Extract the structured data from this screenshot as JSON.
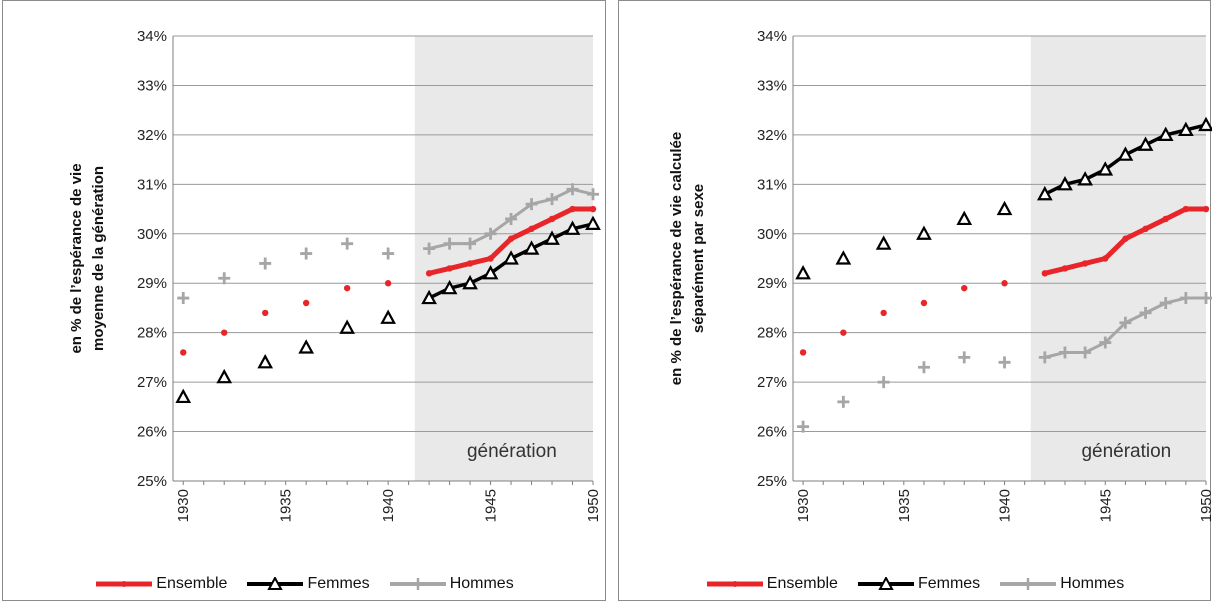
{
  "chart_data": [
    {
      "type": "line",
      "ylabel": [
        "en % de l’espérance de vie",
        "moyenne de la génération"
      ],
      "ylim": [
        25,
        34
      ],
      "yticks": [
        "25%",
        "26%",
        "27%",
        "28%",
        "29%",
        "30%",
        "31%",
        "32%",
        "33%",
        "34%"
      ],
      "xlim": [
        1929.5,
        1950
      ],
      "xticks": [
        "1930",
        "1935",
        "1940",
        "1945",
        "1950"
      ],
      "grid": true,
      "legend_position": "bottom",
      "shaded_region": {
        "x_start": 1941.3,
        "x_end": 1950,
        "label": "génération"
      },
      "series": [
        {
          "name": "Ensemble",
          "color": "#e8262a",
          "marker": "dot",
          "line_from": 1942,
          "x": [
            1930,
            1932,
            1934,
            1936,
            1938,
            1940,
            1942,
            1943,
            1944,
            1945,
            1946,
            1947,
            1948,
            1949,
            1950
          ],
          "y": [
            27.6,
            28.0,
            28.4,
            28.6,
            28.9,
            29.0,
            29.2,
            29.3,
            29.4,
            29.5,
            29.9,
            30.1,
            30.3,
            30.5,
            30.5
          ]
        },
        {
          "name": "Femmes",
          "color": "#000000",
          "marker": "triangle",
          "line_from": 1942,
          "x": [
            1930,
            1932,
            1934,
            1936,
            1938,
            1940,
            1942,
            1943,
            1944,
            1945,
            1946,
            1947,
            1948,
            1949,
            1950
          ],
          "y": [
            26.7,
            27.1,
            27.4,
            27.7,
            28.1,
            28.3,
            28.7,
            28.9,
            29.0,
            29.2,
            29.5,
            29.7,
            29.9,
            30.1,
            30.2
          ]
        },
        {
          "name": "Hommes",
          "color": "#a6a6a6",
          "marker": "plus",
          "line_from": 1942,
          "x": [
            1930,
            1932,
            1934,
            1936,
            1938,
            1940,
            1942,
            1943,
            1944,
            1945,
            1946,
            1947,
            1948,
            1949,
            1950
          ],
          "y": [
            28.7,
            29.1,
            29.4,
            29.6,
            29.8,
            29.6,
            29.7,
            29.8,
            29.8,
            30.0,
            30.3,
            30.6,
            30.7,
            30.9,
            30.8
          ]
        }
      ]
    },
    {
      "type": "line",
      "ylabel": [
        "en % de l’espérance de vie calculée",
        "séparément par sexe"
      ],
      "ylim": [
        25,
        34
      ],
      "yticks": [
        "25%",
        "26%",
        "27%",
        "28%",
        "29%",
        "30%",
        "31%",
        "32%",
        "33%",
        "34%"
      ],
      "xlim": [
        1929.5,
        1950
      ],
      "xticks": [
        "1930",
        "1935",
        "1940",
        "1945",
        "1950"
      ],
      "grid": true,
      "legend_position": "bottom",
      "shaded_region": {
        "x_start": 1941.3,
        "x_end": 1950,
        "label": "génération"
      },
      "series": [
        {
          "name": "Ensemble",
          "color": "#e8262a",
          "marker": "dot",
          "line_from": 1942,
          "x": [
            1930,
            1932,
            1934,
            1936,
            1938,
            1940,
            1942,
            1943,
            1944,
            1945,
            1946,
            1947,
            1948,
            1949,
            1950
          ],
          "y": [
            27.6,
            28.0,
            28.4,
            28.6,
            28.9,
            29.0,
            29.2,
            29.3,
            29.4,
            29.5,
            29.9,
            30.1,
            30.3,
            30.5,
            30.5
          ]
        },
        {
          "name": "Femmes",
          "color": "#000000",
          "marker": "triangle",
          "line_from": 1942,
          "x": [
            1930,
            1932,
            1934,
            1936,
            1938,
            1940,
            1942,
            1943,
            1944,
            1945,
            1946,
            1947,
            1948,
            1949,
            1950
          ],
          "y": [
            29.2,
            29.5,
            29.8,
            30.0,
            30.3,
            30.5,
            30.8,
            31.0,
            31.1,
            31.3,
            31.6,
            31.8,
            32.0,
            32.1,
            32.2
          ]
        },
        {
          "name": "Hommes",
          "color": "#a6a6a6",
          "marker": "plus",
          "line_from": 1942,
          "x": [
            1930,
            1932,
            1934,
            1936,
            1938,
            1940,
            1942,
            1943,
            1944,
            1945,
            1946,
            1947,
            1948,
            1949,
            1950
          ],
          "y": [
            26.1,
            26.6,
            27.0,
            27.3,
            27.5,
            27.4,
            27.5,
            27.6,
            27.6,
            27.8,
            28.2,
            28.4,
            28.6,
            28.7,
            28.7
          ]
        }
      ]
    }
  ]
}
